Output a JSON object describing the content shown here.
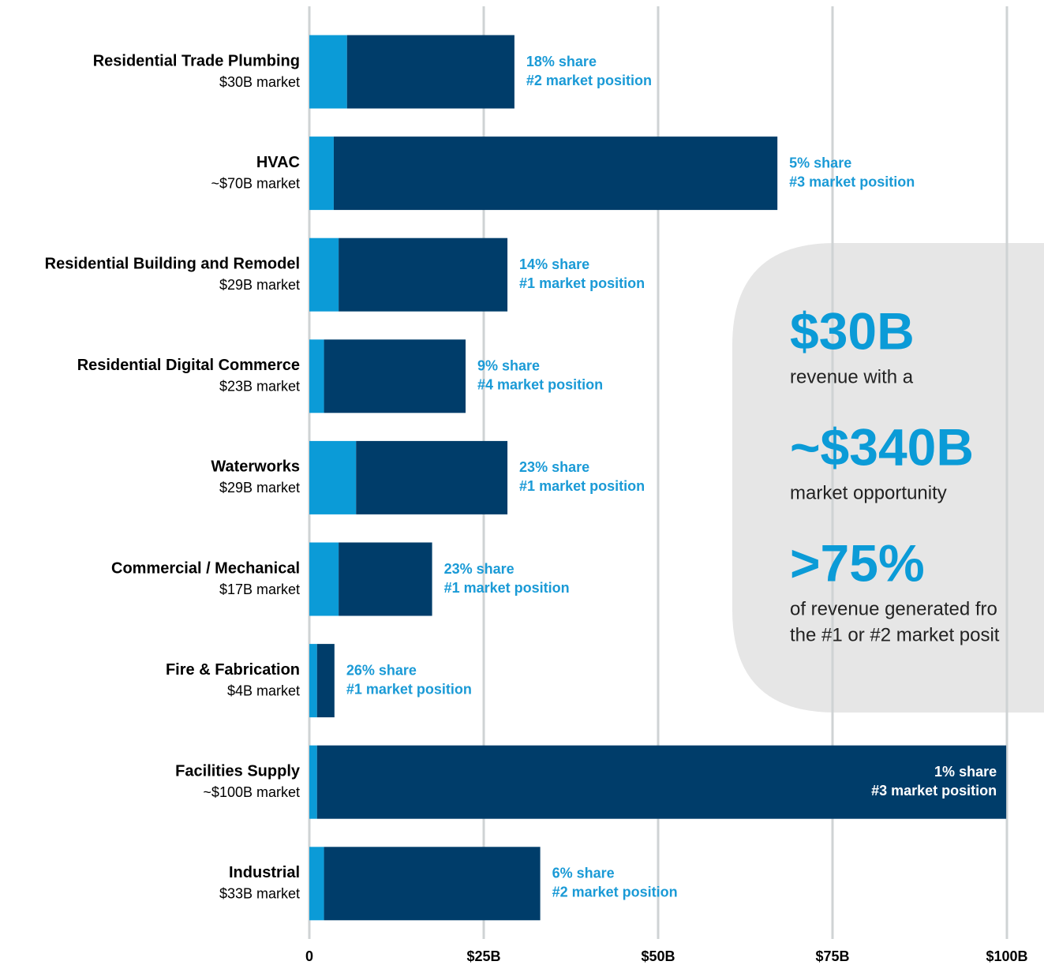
{
  "chart_data": {
    "type": "stacked-barh",
    "categories": [
      "Residential Trade Plumbing",
      "HVAC",
      "Residential Building and Remodel",
      "Residential Digital Commerce",
      "Waterworks",
      "Commercial / Mechanical",
      "Fire & Fabrication",
      "Facilities Supply",
      "Industrial"
    ],
    "market_labels": [
      "$30B market",
      "~$70B market",
      "$29B market",
      "$23B market",
      "$29B market",
      "$17B market",
      "$4B market",
      "~$100B market",
      "$33B market"
    ],
    "share_labels": [
      "18% share",
      "5% share",
      "14% share",
      "9% share",
      "23% share",
      "23% share",
      "26% share",
      "1% share",
      "6% share"
    ],
    "position_labels": [
      "#2 market position",
      "#3 market position",
      "#1 market position",
      "#4 market position",
      "#1 market position",
      "#1 market position",
      "#1 market position",
      "#3 market position",
      "#2 market position"
    ],
    "series": [
      {
        "color": "#0b9bd7",
        "values": [
          5.4,
          3.5,
          4.2,
          2.1,
          6.7,
          4.2,
          1.1,
          1.1,
          2.1
        ]
      },
      {
        "color": "#003d6a",
        "values": [
          24.0,
          63.6,
          24.2,
          20.3,
          21.7,
          13.4,
          2.5,
          98.8,
          31.0
        ]
      }
    ],
    "xlim": [
      0,
      100
    ],
    "xticks": [
      0,
      {
        "value": 25,
        "label": "$25B"
      },
      {
        "value": 50,
        "label": "$50B"
      },
      {
        "value": 75,
        "label": "$75B"
      },
      {
        "value": 100,
        "label": "$100B"
      }
    ],
    "grid": true,
    "callout": [
      {
        "value_text": "$30B",
        "caption": [
          "revenue with a"
        ]
      },
      {
        "value_text": "~$340B",
        "caption": [
          "market opportunity"
        ]
      },
      {
        "value_text": ">75%",
        "caption": [
          "of revenue generated fro",
          "the #1 or #2 market posit"
        ]
      }
    ]
  }
}
